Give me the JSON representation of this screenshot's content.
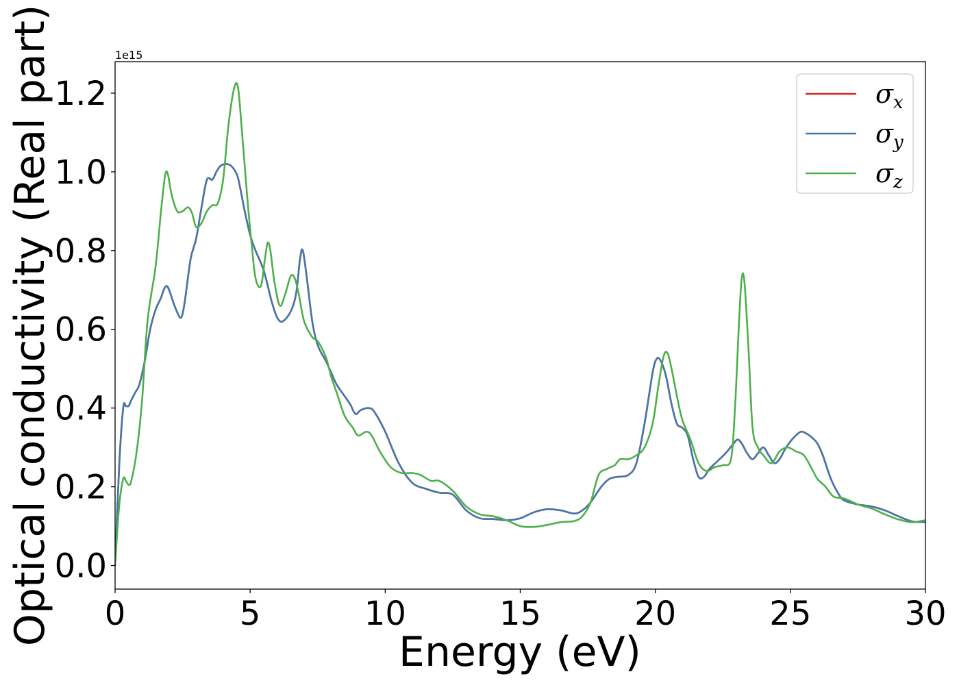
{
  "chart_data": {
    "type": "line",
    "title": "",
    "xlabel": "Energy (eV)",
    "ylabel": "Optical conductivity (Real part)",
    "y_offset_label": "1e15",
    "xlim": [
      0,
      30
    ],
    "ylim": [
      -0.06,
      1.28
    ],
    "x_ticks": [
      0,
      5,
      10,
      15,
      20,
      25,
      30
    ],
    "x_tick_labels": [
      "0",
      "5",
      "10",
      "15",
      "20",
      "25",
      "30"
    ],
    "y_ticks": [
      0.0,
      0.2,
      0.4,
      0.6,
      0.8,
      1.0,
      1.2
    ],
    "y_tick_labels": [
      "0.0",
      "0.2",
      "0.4",
      "0.6",
      "0.8",
      "1.0",
      "1.2"
    ],
    "grid": false,
    "legend_position": "top-right",
    "series": [
      {
        "name": "σx",
        "symbol": "σ",
        "subscript": "x",
        "color": "#d62728",
        "x": [
          0.0,
          0.15,
          0.3,
          0.4,
          0.5,
          0.6,
          0.75,
          0.9,
          1.1,
          1.3,
          1.5,
          1.7,
          1.8,
          1.9,
          2.0,
          2.2,
          2.4,
          2.5,
          2.6,
          2.8,
          3.0,
          3.2,
          3.4,
          3.6,
          3.75,
          3.9,
          4.1,
          4.3,
          4.5,
          4.6,
          4.8,
          5.0,
          5.2,
          5.5,
          5.8,
          6.0,
          6.2,
          6.5,
          6.7,
          6.85,
          6.95,
          7.1,
          7.3,
          7.5,
          7.8,
          8.0,
          8.2,
          8.5,
          8.7,
          8.9,
          9.1,
          9.4,
          9.6,
          10.0,
          10.5,
          11.0,
          11.5,
          12.0,
          12.5,
          13.0,
          13.5,
          14.0,
          14.5,
          15.0,
          15.5,
          16.0,
          16.5,
          17.0,
          17.3,
          17.6,
          18.0,
          18.3,
          18.6,
          19.0,
          19.3,
          19.6,
          19.9,
          20.05,
          20.2,
          20.4,
          20.6,
          20.8,
          21.0,
          21.2,
          21.4,
          21.6,
          21.8,
          22.0,
          22.3,
          22.6,
          22.9,
          23.05,
          23.2,
          23.4,
          23.6,
          23.8,
          24.0,
          24.2,
          24.4,
          24.6,
          24.8,
          25.0,
          25.2,
          25.4,
          25.6,
          25.8,
          26.0,
          26.2,
          26.5,
          26.8,
          27.0,
          27.5,
          28.0,
          28.5,
          29.0,
          29.5,
          30.0
        ],
        "y": [
          0.0,
          0.25,
          0.4,
          0.405,
          0.405,
          0.42,
          0.44,
          0.46,
          0.52,
          0.6,
          0.65,
          0.68,
          0.7,
          0.71,
          0.7,
          0.66,
          0.63,
          0.64,
          0.68,
          0.78,
          0.83,
          0.91,
          0.98,
          0.98,
          1.0,
          1.015,
          1.02,
          1.015,
          0.995,
          0.97,
          0.9,
          0.84,
          0.8,
          0.75,
          0.67,
          0.63,
          0.62,
          0.645,
          0.69,
          0.78,
          0.8,
          0.73,
          0.62,
          0.56,
          0.52,
          0.49,
          0.46,
          0.43,
          0.41,
          0.385,
          0.395,
          0.4,
          0.39,
          0.34,
          0.26,
          0.21,
          0.195,
          0.185,
          0.18,
          0.14,
          0.12,
          0.118,
          0.115,
          0.12,
          0.135,
          0.143,
          0.14,
          0.132,
          0.14,
          0.16,
          0.2,
          0.22,
          0.225,
          0.23,
          0.26,
          0.36,
          0.49,
          0.525,
          0.52,
          0.48,
          0.41,
          0.36,
          0.35,
          0.33,
          0.27,
          0.225,
          0.225,
          0.245,
          0.265,
          0.285,
          0.31,
          0.32,
          0.31,
          0.285,
          0.27,
          0.285,
          0.3,
          0.28,
          0.26,
          0.27,
          0.295,
          0.315,
          0.33,
          0.34,
          0.335,
          0.325,
          0.31,
          0.28,
          0.22,
          0.18,
          0.165,
          0.155,
          0.15,
          0.14,
          0.125,
          0.112,
          0.11
        ]
      },
      {
        "name": "σy",
        "symbol": "σ",
        "subscript": "y",
        "color": "#4477aa",
        "x": [
          0.0,
          0.15,
          0.3,
          0.4,
          0.5,
          0.6,
          0.75,
          0.9,
          1.1,
          1.3,
          1.5,
          1.7,
          1.8,
          1.9,
          2.0,
          2.2,
          2.4,
          2.5,
          2.6,
          2.8,
          3.0,
          3.2,
          3.4,
          3.6,
          3.75,
          3.9,
          4.1,
          4.3,
          4.5,
          4.6,
          4.8,
          5.0,
          5.2,
          5.5,
          5.8,
          6.0,
          6.2,
          6.5,
          6.7,
          6.85,
          6.95,
          7.1,
          7.3,
          7.5,
          7.8,
          8.0,
          8.2,
          8.5,
          8.7,
          8.9,
          9.1,
          9.4,
          9.6,
          10.0,
          10.5,
          11.0,
          11.5,
          12.0,
          12.5,
          13.0,
          13.5,
          14.0,
          14.5,
          15.0,
          15.5,
          16.0,
          16.5,
          17.0,
          17.3,
          17.6,
          18.0,
          18.3,
          18.6,
          19.0,
          19.3,
          19.6,
          19.9,
          20.05,
          20.2,
          20.4,
          20.6,
          20.8,
          21.0,
          21.2,
          21.4,
          21.6,
          21.8,
          22.0,
          22.3,
          22.6,
          22.9,
          23.05,
          23.2,
          23.4,
          23.6,
          23.8,
          24.0,
          24.2,
          24.4,
          24.6,
          24.8,
          25.0,
          25.2,
          25.4,
          25.6,
          25.8,
          26.0,
          26.2,
          26.5,
          26.8,
          27.0,
          27.5,
          28.0,
          28.5,
          29.0,
          29.5,
          30.0
        ],
        "y": [
          0.0,
          0.25,
          0.4,
          0.405,
          0.405,
          0.42,
          0.44,
          0.46,
          0.52,
          0.6,
          0.65,
          0.68,
          0.7,
          0.71,
          0.7,
          0.66,
          0.63,
          0.64,
          0.68,
          0.78,
          0.83,
          0.91,
          0.98,
          0.98,
          1.0,
          1.015,
          1.02,
          1.015,
          0.995,
          0.97,
          0.9,
          0.84,
          0.8,
          0.75,
          0.67,
          0.63,
          0.62,
          0.645,
          0.69,
          0.78,
          0.8,
          0.73,
          0.62,
          0.56,
          0.52,
          0.49,
          0.46,
          0.43,
          0.41,
          0.385,
          0.395,
          0.4,
          0.39,
          0.34,
          0.26,
          0.21,
          0.195,
          0.185,
          0.18,
          0.14,
          0.12,
          0.118,
          0.115,
          0.12,
          0.135,
          0.143,
          0.14,
          0.132,
          0.14,
          0.16,
          0.2,
          0.22,
          0.225,
          0.23,
          0.26,
          0.36,
          0.49,
          0.525,
          0.52,
          0.48,
          0.41,
          0.36,
          0.35,
          0.33,
          0.27,
          0.225,
          0.225,
          0.245,
          0.265,
          0.285,
          0.31,
          0.32,
          0.31,
          0.285,
          0.27,
          0.285,
          0.3,
          0.28,
          0.26,
          0.27,
          0.295,
          0.315,
          0.33,
          0.34,
          0.335,
          0.325,
          0.31,
          0.28,
          0.22,
          0.18,
          0.165,
          0.155,
          0.15,
          0.14,
          0.125,
          0.112,
          0.11
        ]
      },
      {
        "name": "σz",
        "symbol": "σ",
        "subscript": "z",
        "color": "#4daf4a",
        "x": [
          0.0,
          0.15,
          0.3,
          0.4,
          0.5,
          0.6,
          0.8,
          1.0,
          1.2,
          1.5,
          1.7,
          1.85,
          1.95,
          2.1,
          2.3,
          2.5,
          2.7,
          2.85,
          3.0,
          3.2,
          3.4,
          3.6,
          3.8,
          4.0,
          4.2,
          4.4,
          4.55,
          4.7,
          4.9,
          5.05,
          5.2,
          5.4,
          5.55,
          5.65,
          5.75,
          5.9,
          6.1,
          6.3,
          6.5,
          6.65,
          6.8,
          7.0,
          7.3,
          7.5,
          7.8,
          8.0,
          8.2,
          8.5,
          8.8,
          9.0,
          9.3,
          9.5,
          9.8,
          10.2,
          10.6,
          11.0,
          11.3,
          11.7,
          12.0,
          12.5,
          13.0,
          13.5,
          14.0,
          14.5,
          15.0,
          15.5,
          16.0,
          16.5,
          17.0,
          17.3,
          17.6,
          17.9,
          18.2,
          18.5,
          18.7,
          19.0,
          19.3,
          19.6,
          19.9,
          20.1,
          20.3,
          20.45,
          20.6,
          20.8,
          21.0,
          21.3,
          21.6,
          21.9,
          22.2,
          22.5,
          22.8,
          22.95,
          23.1,
          23.2,
          23.3,
          23.45,
          23.6,
          23.8,
          24.0,
          24.3,
          24.6,
          24.9,
          25.2,
          25.5,
          25.8,
          26.0,
          26.3,
          26.6,
          27.0,
          27.5,
          28.0,
          28.5,
          29.0,
          29.5,
          30.0
        ],
        "y": [
          0.0,
          0.15,
          0.22,
          0.215,
          0.205,
          0.215,
          0.29,
          0.42,
          0.62,
          0.76,
          0.9,
          0.99,
          0.995,
          0.94,
          0.9,
          0.9,
          0.91,
          0.895,
          0.86,
          0.87,
          0.9,
          0.915,
          0.92,
          0.98,
          1.12,
          1.21,
          1.215,
          1.1,
          0.93,
          0.82,
          0.73,
          0.71,
          0.78,
          0.82,
          0.8,
          0.72,
          0.66,
          0.69,
          0.735,
          0.73,
          0.69,
          0.62,
          0.58,
          0.57,
          0.53,
          0.48,
          0.44,
          0.38,
          0.35,
          0.33,
          0.34,
          0.33,
          0.29,
          0.25,
          0.235,
          0.235,
          0.23,
          0.215,
          0.215,
          0.19,
          0.15,
          0.13,
          0.125,
          0.115,
          0.1,
          0.098,
          0.103,
          0.11,
          0.113,
          0.125,
          0.16,
          0.23,
          0.245,
          0.255,
          0.27,
          0.27,
          0.28,
          0.3,
          0.36,
          0.45,
          0.53,
          0.54,
          0.5,
          0.43,
          0.37,
          0.32,
          0.26,
          0.24,
          0.25,
          0.255,
          0.27,
          0.4,
          0.62,
          0.73,
          0.72,
          0.55,
          0.35,
          0.3,
          0.28,
          0.26,
          0.29,
          0.3,
          0.29,
          0.28,
          0.245,
          0.22,
          0.2,
          0.175,
          0.17,
          0.155,
          0.145,
          0.13,
          0.117,
          0.11,
          0.115
        ]
      }
    ]
  }
}
